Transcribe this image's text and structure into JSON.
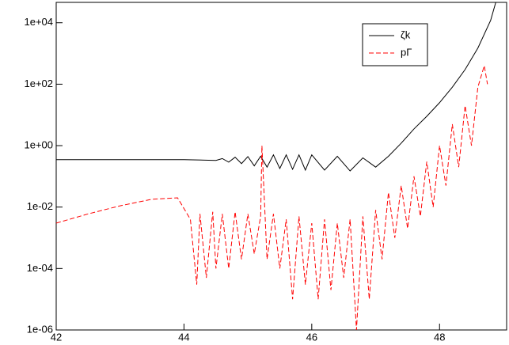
{
  "chart_data": {
    "type": "line",
    "log_y": true,
    "series": [
      {
        "name": "ζk",
        "color": "#000000",
        "dash": "none",
        "x": [
          42,
          43,
          44,
          44.5,
          44.6,
          44.7,
          44.8,
          44.9,
          45,
          45.1,
          45.2,
          45.3,
          45.4,
          45.5,
          45.6,
          45.7,
          45.8,
          45.9,
          46,
          46.2,
          46.4,
          46.6,
          46.8,
          47,
          47.2,
          47.4,
          47.6,
          47.8,
          48,
          48.2,
          48.4,
          48.6,
          48.8,
          48.88
        ],
        "values": [
          0.35,
          0.35,
          0.35,
          0.33,
          0.38,
          0.29,
          0.42,
          0.26,
          0.44,
          0.22,
          0.45,
          0.2,
          0.5,
          0.18,
          0.5,
          0.17,
          0.5,
          0.16,
          0.5,
          0.16,
          0.45,
          0.15,
          0.4,
          0.2,
          0.45,
          1.2,
          3.5,
          9,
          25,
          80,
          300,
          1500,
          12000,
          46000
        ]
      },
      {
        "name": "pΓ",
        "color": "#ff0000",
        "dash": "6,3",
        "x": [
          42,
          42.5,
          43,
          43.5,
          43.9,
          44.1,
          44.2,
          44.25,
          44.35,
          44.45,
          44.5,
          44.6,
          44.7,
          44.8,
          44.9,
          45,
          45.1,
          45.2,
          45.22,
          45.3,
          45.4,
          45.5,
          45.6,
          45.7,
          45.8,
          45.9,
          46,
          46.1,
          46.2,
          46.3,
          46.4,
          46.5,
          46.6,
          46.7,
          46.8,
          46.9,
          47,
          47.1,
          47.2,
          47.3,
          47.4,
          47.5,
          47.6,
          47.7,
          47.8,
          47.9,
          48,
          48.1,
          48.2,
          48.3,
          48.4,
          48.5,
          48.6,
          48.7,
          48.75
        ],
        "values": [
          0.003,
          0.006,
          0.011,
          0.018,
          0.02,
          0.004,
          3e-05,
          0.006,
          5e-05,
          0.007,
          0.0001,
          0.006,
          0.0001,
          0.007,
          0.0002,
          0.006,
          0.0003,
          0.005,
          1.0,
          0.0002,
          0.006,
          0.0001,
          0.004,
          1e-05,
          0.005,
          3e-05,
          0.003,
          1e-05,
          0.004,
          2e-05,
          0.003,
          5e-05,
          0.004,
          1e-06,
          0.005,
          1e-05,
          0.008,
          0.0002,
          0.03,
          0.001,
          0.05,
          0.002,
          0.1,
          0.005,
          0.3,
          0.01,
          1,
          0.05,
          5,
          0.2,
          20,
          1,
          80,
          400,
          100
        ]
      }
    ],
    "xlim": [
      42,
      49.05
    ],
    "xticks": [
      42,
      44,
      46,
      48
    ],
    "ylim": [
      1e-06,
      46000
    ],
    "yticks": [
      {
        "value": 1e-06,
        "label": "1e-06"
      },
      {
        "value": 0.0001,
        "label": "1e-04"
      },
      {
        "value": 0.01,
        "label": "1e-02"
      },
      {
        "value": 1,
        "label": "1e+00"
      },
      {
        "value": 100,
        "label": "1e+02"
      },
      {
        "value": 10000,
        "label": "1e+04"
      }
    ],
    "legend": "upper-right"
  }
}
